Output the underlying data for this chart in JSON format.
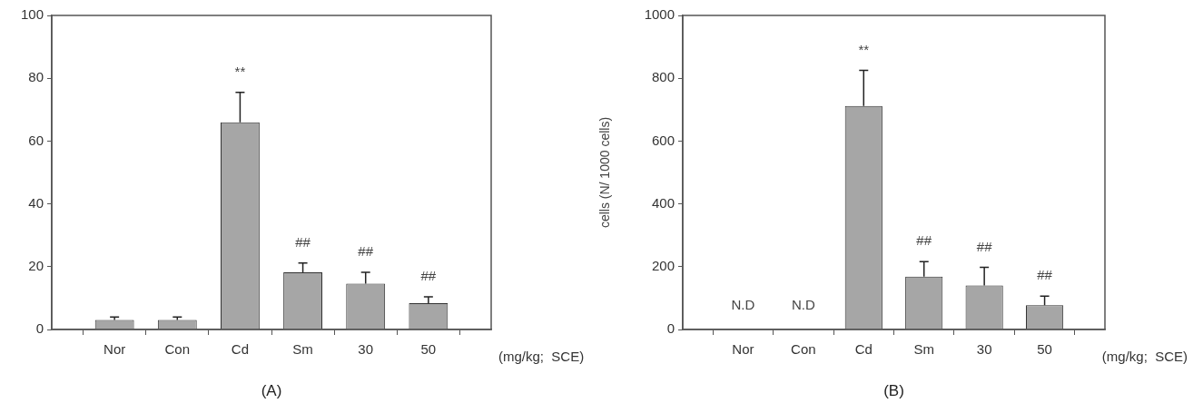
{
  "chart_data": [
    {
      "type": "bar",
      "title": "(A)",
      "xlabel": "(mg/kg;  SCE)",
      "categories": [
        "Nor",
        "Con",
        "Cd",
        "Sm",
        "30",
        "50"
      ],
      "values": [
        3,
        3,
        66,
        18.2,
        14.6,
        8.4
      ],
      "errors": [
        1,
        1,
        9.5,
        3,
        3.6,
        2
      ],
      "color": "#a6a6a6",
      "ylim": [
        0,
        100
      ],
      "yticks": [
        0,
        20,
        40,
        60,
        80,
        100
      ],
      "annotations": [
        {
          "text": "**",
          "x": "Cd",
          "y": 75.5
        },
        {
          "text": "##",
          "x": "Sm",
          "y": 18.2
        },
        {
          "text": "##",
          "x": "30",
          "y": 14.6
        },
        {
          "text": "##",
          "x": "50",
          "y": 8.4
        }
      ]
    },
    {
      "type": "bar",
      "title": "(B)",
      "xlabel": "(mg/kg;  SCE)",
      "ylabel": "cells (N/ 1000 cells)",
      "categories": [
        "Nor",
        "Con",
        "Cd",
        "Sm",
        "30",
        "50"
      ],
      "values": [
        null,
        null,
        712,
        168,
        140,
        77
      ],
      "errors": [
        null,
        null,
        113,
        48,
        58,
        29
      ],
      "color": "#a6a6a6",
      "ylim": [
        0,
        1000
      ],
      "yticks": [
        0,
        200,
        400,
        600,
        800,
        1000
      ],
      "annotations": [
        "N.D",
        "N.D",
        {
          "text": "**",
          "x": "Cd",
          "y": 825
        },
        {
          "text": "##",
          "x": "Sm",
          "y": 168
        },
        {
          "text": "##",
          "x": "30",
          "y": 140
        },
        {
          "text": "##",
          "x": "50",
          "y": 77
        }
      ]
    }
  ]
}
